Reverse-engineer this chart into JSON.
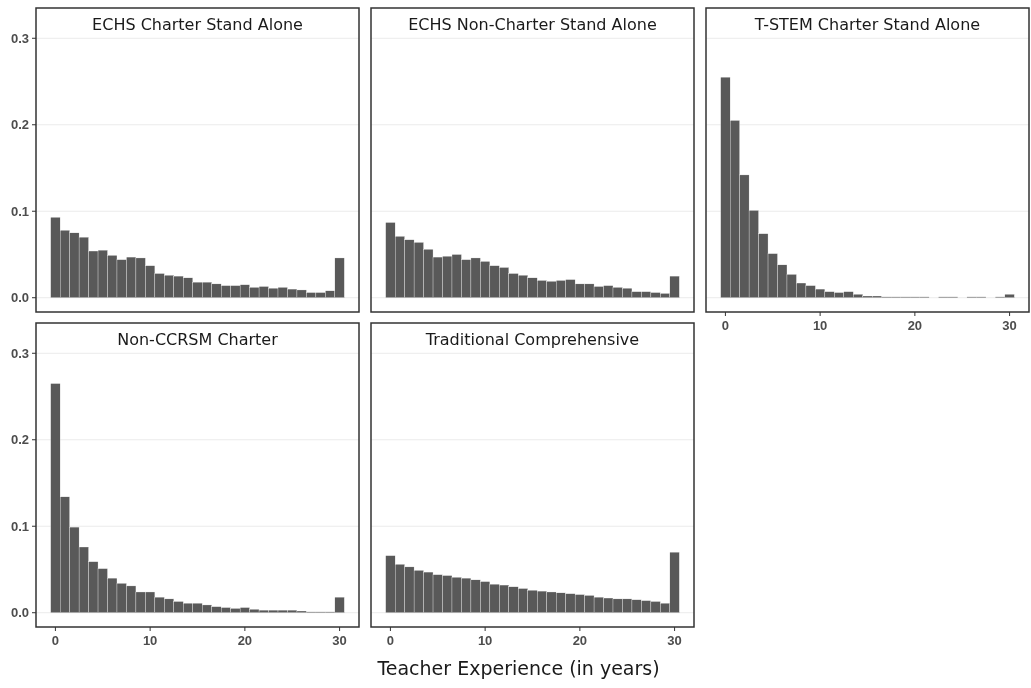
{
  "chart_data": [
    {
      "type": "histogram",
      "title": "ECHS Charter Stand Alone",
      "color": "#595959",
      "bins": [
        -0.5,
        0.5,
        1.5,
        2.5,
        3.5,
        4.5,
        5.5,
        6.5,
        7.5,
        8.5,
        9.5,
        10.5,
        11.5,
        12.5,
        13.5,
        14.5,
        15.5,
        16.5,
        17.5,
        18.5,
        19.5,
        20.5,
        21.5,
        22.5,
        23.5,
        24.5,
        25.5,
        26.5,
        27.5,
        28.5,
        29.5,
        30.5
      ],
      "values": [
        0.093,
        0.078,
        0.075,
        0.07,
        0.054,
        0.055,
        0.049,
        0.044,
        0.047,
        0.046,
        0.037,
        0.028,
        0.026,
        0.025,
        0.023,
        0.018,
        0.018,
        0.016,
        0.014,
        0.014,
        0.015,
        0.012,
        0.013,
        0.011,
        0.012,
        0.01,
        0.009,
        0.006,
        0.006,
        0.008,
        0.046
      ],
      "xlim": [
        -2.05,
        32.05
      ],
      "xticks": [
        0,
        10,
        20,
        30
      ],
      "ylim": [
        -0.0165,
        0.335
      ],
      "yticks": [
        {
          "value": 0,
          "label": "0.0"
        },
        0.1,
        0.2,
        0.3
      ],
      "grid": "y",
      "tick_labels": "y"
    },
    {
      "type": "histogram",
      "title": "ECHS Non-Charter Stand Alone",
      "color": "#595959",
      "bins": [
        -0.5,
        0.5,
        1.5,
        2.5,
        3.5,
        4.5,
        5.5,
        6.5,
        7.5,
        8.5,
        9.5,
        10.5,
        11.5,
        12.5,
        13.5,
        14.5,
        15.5,
        16.5,
        17.5,
        18.5,
        19.5,
        20.5,
        21.5,
        22.5,
        23.5,
        24.5,
        25.5,
        26.5,
        27.5,
        28.5,
        29.5,
        30.5
      ],
      "values": [
        0.087,
        0.071,
        0.067,
        0.064,
        0.056,
        0.047,
        0.048,
        0.05,
        0.044,
        0.046,
        0.042,
        0.037,
        0.035,
        0.028,
        0.026,
        0.023,
        0.02,
        0.019,
        0.02,
        0.021,
        0.016,
        0.016,
        0.013,
        0.014,
        0.012,
        0.011,
        0.007,
        0.007,
        0.006,
        0.005,
        0.025
      ],
      "xlim": [
        -2.05,
        32.05
      ],
      "xticks": [
        0,
        10,
        20,
        30
      ],
      "ylim": [
        -0.0165,
        0.335
      ],
      "yticks": [
        0,
        0.1,
        0.2,
        0.3
      ],
      "grid": "y",
      "tick_labels": false
    },
    {
      "type": "histogram",
      "title": "T-STEM Charter Stand Alone",
      "color": "#595959",
      "bins": [
        -0.5,
        0.5,
        1.5,
        2.5,
        3.5,
        4.5,
        5.5,
        6.5,
        7.5,
        8.5,
        9.5,
        10.5,
        11.5,
        12.5,
        13.5,
        14.5,
        15.5,
        16.5,
        17.5,
        18.5,
        19.5,
        20.5,
        21.5,
        22.5,
        23.5,
        24.5,
        25.5,
        26.5,
        27.5,
        28.5,
        29.5,
        30.5
      ],
      "values": [
        0.255,
        0.205,
        0.142,
        0.101,
        0.074,
        0.051,
        0.038,
        0.027,
        0.017,
        0.014,
        0.01,
        0.007,
        0.006,
        0.007,
        0.004,
        0.002,
        0.002,
        0.001,
        0.001,
        0.001,
        0.001,
        0.001,
        0,
        0.001,
        0.001,
        0,
        0.001,
        0.001,
        0,
        0.001,
        0.004
      ],
      "xlim": [
        -2.05,
        32.05
      ],
      "xticks": [
        0,
        10,
        20,
        30
      ],
      "ylim": [
        -0.0165,
        0.335
      ],
      "yticks": [
        0,
        0.1,
        0.2,
        0.3
      ],
      "grid": "y",
      "tick_labels": "x"
    },
    {
      "type": "histogram",
      "title": "Non-CCRSM Charter",
      "color": "#595959",
      "bins": [
        -0.5,
        0.5,
        1.5,
        2.5,
        3.5,
        4.5,
        5.5,
        6.5,
        7.5,
        8.5,
        9.5,
        10.5,
        11.5,
        12.5,
        13.5,
        14.5,
        15.5,
        16.5,
        17.5,
        18.5,
        19.5,
        20.5,
        21.5,
        22.5,
        23.5,
        24.5,
        25.5,
        26.5,
        27.5,
        28.5,
        29.5,
        30.5
      ],
      "values": [
        0.265,
        0.134,
        0.099,
        0.076,
        0.059,
        0.051,
        0.04,
        0.034,
        0.031,
        0.024,
        0.024,
        0.018,
        0.016,
        0.013,
        0.011,
        0.011,
        0.009,
        0.007,
        0.006,
        0.005,
        0.006,
        0.004,
        0.003,
        0.003,
        0.003,
        0.003,
        0.002,
        0.001,
        0.001,
        0.001,
        0.018
      ],
      "xlim": [
        -2.05,
        32.05
      ],
      "xticks": [
        0,
        10,
        20,
        30
      ],
      "ylim": [
        -0.0165,
        0.335
      ],
      "yticks": [
        {
          "value": 0,
          "label": "0.0"
        },
        0.1,
        0.2,
        0.3
      ],
      "grid": "y"
    },
    {
      "type": "histogram",
      "title": "Traditional Comprehensive",
      "xlabel": "Teacher Experience (in years)",
      "color": "#595959",
      "bins": [
        -0.5,
        0.5,
        1.5,
        2.5,
        3.5,
        4.5,
        5.5,
        6.5,
        7.5,
        8.5,
        9.5,
        10.5,
        11.5,
        12.5,
        13.5,
        14.5,
        15.5,
        16.5,
        17.5,
        18.5,
        19.5,
        20.5,
        21.5,
        22.5,
        23.5,
        24.5,
        25.5,
        26.5,
        27.5,
        28.5,
        29.5,
        30.5
      ],
      "values": [
        0.066,
        0.056,
        0.053,
        0.049,
        0.047,
        0.044,
        0.043,
        0.041,
        0.04,
        0.038,
        0.036,
        0.033,
        0.032,
        0.03,
        0.028,
        0.026,
        0.025,
        0.024,
        0.023,
        0.022,
        0.021,
        0.02,
        0.018,
        0.017,
        0.016,
        0.016,
        0.015,
        0.014,
        0.013,
        0.011,
        0.07
      ],
      "xlim": [
        -2.05,
        32.05
      ],
      "xticks": [
        0,
        10,
        20,
        30
      ],
      "ylim": [
        -0.0165,
        0.335
      ],
      "yticks": [
        0,
        0.1,
        0.2,
        0.3
      ],
      "grid": "y",
      "tick_labels": "x"
    }
  ]
}
